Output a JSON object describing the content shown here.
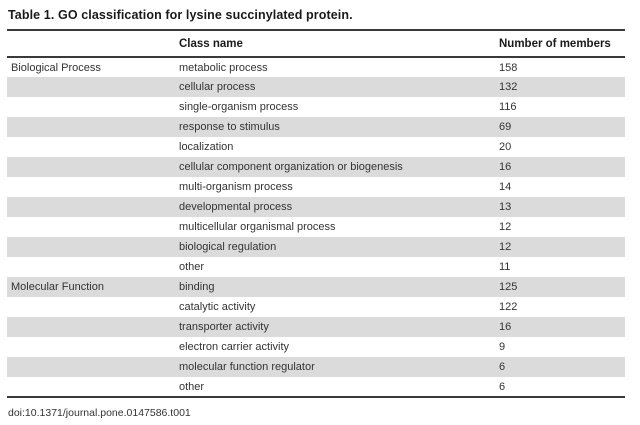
{
  "title": "Table 1. GO classification for lysine succinylated protein.",
  "table": {
    "headers": {
      "group": "",
      "class_name": "Class name",
      "members": "Number of members"
    },
    "rows": [
      {
        "group": "Biological Process",
        "class_name": "metabolic process",
        "members": "158"
      },
      {
        "group": "",
        "class_name": "cellular process",
        "members": "132"
      },
      {
        "group": "",
        "class_name": "single-organism process",
        "members": "116"
      },
      {
        "group": "",
        "class_name": "response to stimulus",
        "members": "69"
      },
      {
        "group": "",
        "class_name": "localization",
        "members": "20"
      },
      {
        "group": "",
        "class_name": "cellular component organization or biogenesis",
        "members": "16"
      },
      {
        "group": "",
        "class_name": "multi-organism process",
        "members": "14"
      },
      {
        "group": "",
        "class_name": "developmental process",
        "members": "13"
      },
      {
        "group": "",
        "class_name": "multicellular organismal process",
        "members": "12"
      },
      {
        "group": "",
        "class_name": "biological regulation",
        "members": "12"
      },
      {
        "group": "",
        "class_name": "other",
        "members": "11"
      },
      {
        "group": "Molecular Function",
        "class_name": "binding",
        "members": "125"
      },
      {
        "group": "",
        "class_name": "catalytic activity",
        "members": "122"
      },
      {
        "group": "",
        "class_name": "transporter activity",
        "members": "16"
      },
      {
        "group": "",
        "class_name": "electron carrier activity",
        "members": "9"
      },
      {
        "group": "",
        "class_name": "molecular function regulator",
        "members": "6"
      },
      {
        "group": "",
        "class_name": "other",
        "members": "6"
      }
    ]
  },
  "footer": {
    "doi": "doi:10.1371/journal.pone.0147586.t001"
  },
  "colors": {
    "stripe": "#dbdbdb",
    "rule": "#3a3a3a",
    "text": "#333333",
    "title_text": "#1a1a1a"
  }
}
